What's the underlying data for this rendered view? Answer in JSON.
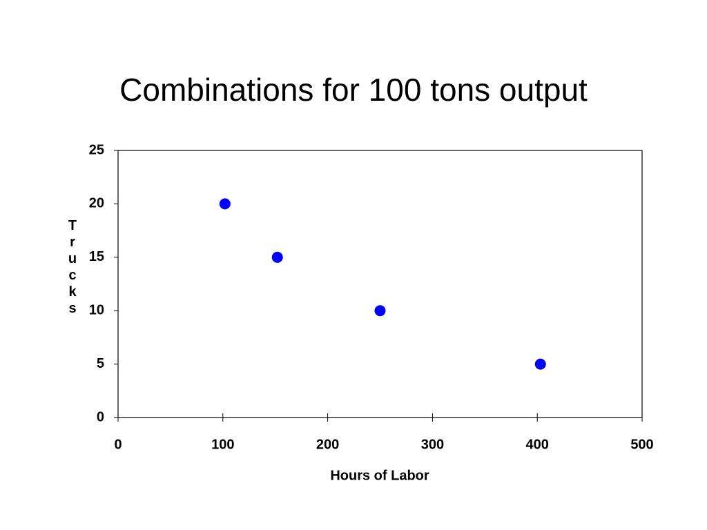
{
  "chart_data": {
    "type": "scatter",
    "title": "Combinations for 100 tons output",
    "x_label": "Hours of Labor",
    "y_label": "Trucks",
    "x": [
      102,
      152,
      250,
      403
    ],
    "values": [
      20,
      15,
      10,
      5
    ],
    "color": "#0000ff",
    "xlim": [
      0,
      500
    ],
    "xticks": [
      0,
      100,
      200,
      300,
      400,
      500
    ],
    "ylim": [
      0,
      25
    ],
    "yticks": [
      0,
      5,
      10,
      15,
      20,
      25
    ],
    "grid": false
  }
}
